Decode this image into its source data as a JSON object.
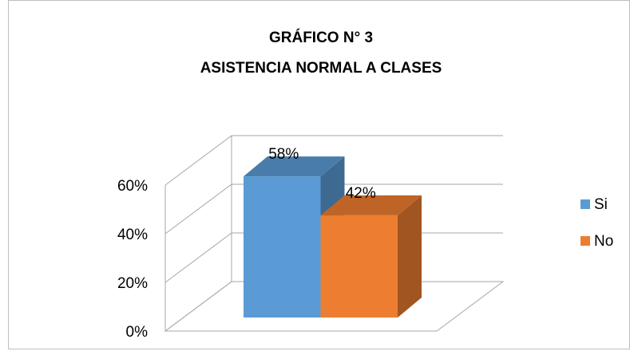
{
  "chart_data": {
    "type": "bar3d",
    "title": "GRÁFICO N° 3",
    "subtitle": "ASISTENCIA NORMAL A CLASES",
    "categories": [
      "Si",
      "No"
    ],
    "values": [
      58,
      42
    ],
    "value_labels": [
      "58%",
      "42%"
    ],
    "colors": [
      "#5b9bd5",
      "#ed7d31"
    ],
    "ylim": [
      0,
      60
    ],
    "yticks": [
      {
        "value": 0,
        "label": "0%"
      },
      {
        "value": 20,
        "label": "20%"
      },
      {
        "value": 40,
        "label": "40%"
      },
      {
        "value": 60,
        "label": "60%"
      }
    ],
    "grid": true,
    "legend": "right"
  }
}
